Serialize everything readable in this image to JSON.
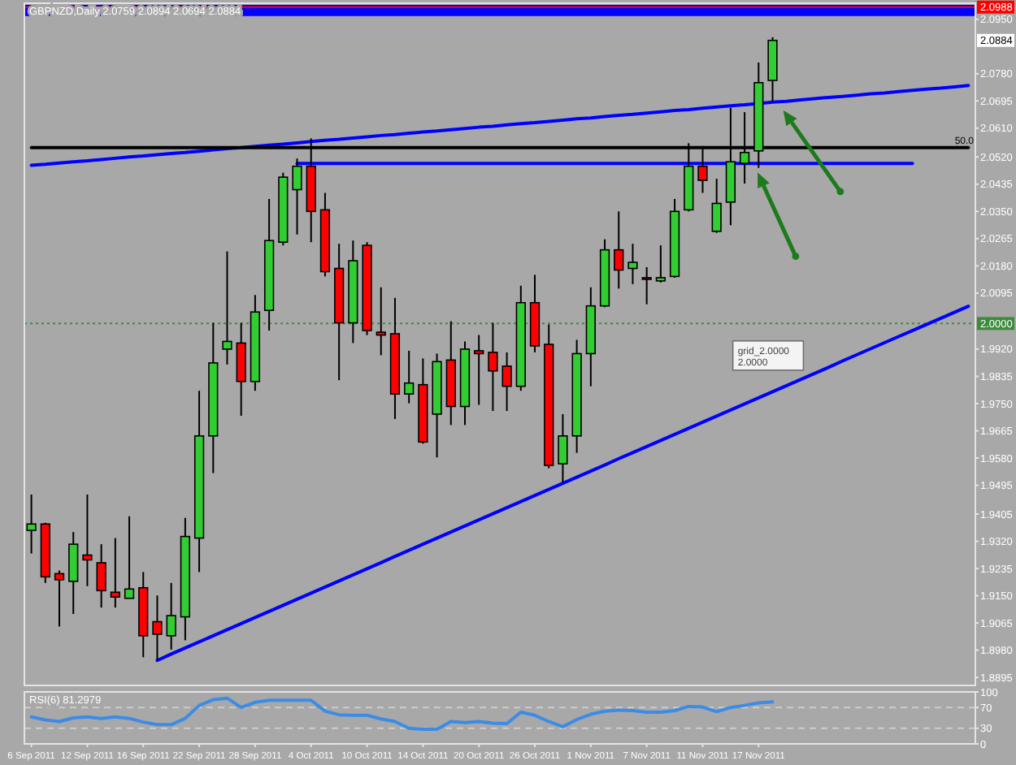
{
  "chart_data": [
    {
      "type": "candlestick",
      "title": "GBPNZD,Daily 2.0759 2.0894 2.0694 2.0884",
      "categories": [
        null,
        null,
        null,
        null,
        null,
        null,
        null,
        null,
        null,
        null,
        null,
        null,
        null,
        null,
        null,
        null,
        null,
        null,
        null,
        null,
        null,
        null,
        null,
        null,
        null,
        null,
        null,
        null,
        null,
        null,
        null,
        null,
        null,
        null,
        null,
        null,
        null,
        null,
        null,
        null,
        null,
        null,
        null,
        null,
        null,
        null,
        null,
        null,
        null,
        null,
        null,
        null,
        null,
        null,
        null,
        null,
        null,
        null,
        null,
        null,
        null,
        null,
        null,
        null,
        null,
        null,
        null,
        null
      ],
      "ohlc": [
        [
          1.9354,
          1.9466,
          1.9282,
          1.9374
        ],
        [
          1.9374,
          1.9378,
          1.919,
          1.9209
        ],
        [
          1.9219,
          1.9229,
          1.9054,
          1.92
        ],
        [
          1.9195,
          1.9349,
          1.9093,
          1.9311
        ],
        [
          1.9277,
          1.9466,
          1.918,
          1.9262
        ],
        [
          1.9253,
          1.9311,
          1.9113,
          1.9166
        ],
        [
          1.9161,
          1.933,
          1.9113,
          1.9146
        ],
        [
          1.9142,
          1.9398,
          1.9142,
          1.9171
        ],
        [
          1.9175,
          1.9224,
          1.8958,
          1.9025
        ],
        [
          1.9069,
          1.9151,
          1.8948,
          1.903
        ],
        [
          1.9025,
          1.919,
          1.8982,
          1.9088
        ],
        [
          1.9084,
          1.9393,
          1.9011,
          1.9335
        ],
        [
          1.933,
          1.979,
          1.9224,
          1.9649
        ],
        [
          1.9649,
          2.0002,
          1.9533,
          1.9877
        ],
        [
          1.992,
          2.0225,
          1.9872,
          1.9944
        ],
        [
          1.9939,
          2.0002,
          1.9712,
          1.9819
        ],
        [
          1.9819,
          2.0089,
          1.979,
          2.0036
        ],
        [
          2.0041,
          2.0389,
          1.9978,
          2.0259
        ],
        [
          2.0254,
          2.0471,
          2.0244,
          2.0457
        ],
        [
          2.0418,
          2.0515,
          2.0278,
          2.0491
        ],
        [
          2.0491,
          2.0578,
          2.0254,
          2.035
        ],
        [
          2.0355,
          2.0408,
          2.0147,
          2.0162
        ],
        [
          2.0172,
          2.0249,
          1.9823,
          2.0002
        ],
        [
          2.0002,
          2.0259,
          1.9939,
          2.0196
        ],
        [
          2.0244,
          2.0254,
          1.9964,
          1.9978
        ],
        [
          1.9973,
          2.0113,
          1.9901,
          1.9964
        ],
        [
          1.9968,
          2.008,
          1.9702,
          1.978
        ],
        [
          1.978,
          1.9915,
          1.9751,
          1.9814
        ],
        [
          1.9809,
          1.9891,
          1.9625,
          1.963
        ],
        [
          1.9717,
          1.9906,
          1.9582,
          1.9881
        ],
        [
          1.9886,
          2.0007,
          1.9683,
          1.9741
        ],
        [
          1.9741,
          1.9944,
          1.9683,
          1.992
        ],
        [
          1.9915,
          1.9964,
          1.9746,
          1.9906
        ],
        [
          1.991,
          2.0002,
          1.9727,
          1.9852
        ],
        [
          1.9867,
          1.991,
          1.9727,
          1.9804
        ],
        [
          1.9804,
          2.0118,
          1.979,
          2.0065
        ],
        [
          2.0065,
          2.0152,
          1.991,
          1.993
        ],
        [
          1.9935,
          1.9997,
          1.9548,
          1.9557
        ],
        [
          1.9562,
          1.9717,
          1.9504,
          1.9649
        ],
        [
          1.9649,
          1.9949,
          1.9596,
          1.9906
        ],
        [
          1.9906,
          2.0113,
          1.9804,
          2.0055
        ],
        [
          2.0055,
          2.0263,
          2.0051,
          2.023
        ],
        [
          2.023,
          2.035,
          2.0109,
          2.0167
        ],
        [
          2.0172,
          2.0249,
          2.0123,
          2.0191
        ],
        [
          2.0143,
          2.0176,
          2.006,
          2.0138
        ],
        [
          2.0133,
          2.0244,
          2.0128,
          2.0143
        ],
        [
          2.0147,
          2.0389,
          2.0143,
          2.035
        ],
        [
          2.0355,
          2.0563,
          2.035,
          2.0491
        ],
        [
          2.0491,
          2.0554,
          2.0408,
          2.0447
        ],
        [
          2.0288,
          2.0452,
          2.0283,
          2.0375
        ],
        [
          2.0379,
          2.0674,
          2.0307,
          2.0505
        ],
        [
          2.05,
          2.066,
          2.0437,
          2.0534
        ],
        [
          2.0539,
          2.0815,
          2.0486,
          2.0752
        ],
        [
          2.0759,
          2.0894,
          2.0694,
          2.0884
        ],
        null,
        null,
        null,
        null,
        null,
        null,
        null,
        null,
        null,
        null,
        null,
        null,
        null,
        null
      ],
      "colors": [
        "#32cd32",
        "#ff0000",
        "#ff0000",
        "#32cd32",
        "#ff0000",
        "#ff0000",
        "#ff0000",
        "#32cd32",
        "#ff0000",
        "#ff0000",
        "#32cd32",
        "#32cd32",
        "#32cd32",
        "#32cd32",
        "#32cd32",
        "#ff0000",
        "#32cd32",
        "#32cd32",
        "#32cd32",
        "#32cd32",
        "#ff0000",
        "#ff0000",
        "#ff0000",
        "#32cd32",
        "#ff0000",
        "#ff0000",
        "#ff0000",
        "#32cd32",
        "#ff0000",
        "#32cd32",
        "#ff0000",
        "#32cd32",
        "#ff0000",
        "#ff0000",
        "#ff0000",
        "#32cd32",
        "#ff0000",
        "#ff0000",
        "#32cd32",
        "#32cd32",
        "#32cd32",
        "#32cd32",
        "#ff0000",
        "#32cd32",
        "#ff0000",
        "#32cd32",
        "#32cd32",
        "#32cd32",
        "#ff0000",
        "#32cd32",
        "#32cd32",
        "#32cd32",
        "#32cd32",
        "#32cd32",
        null,
        null,
        null,
        null,
        null,
        null,
        null,
        null,
        null,
        null,
        null,
        null,
        null,
        null
      ],
      "series": [
        {
          "type": "line",
          "color": "#0000ff",
          "values": [
            2.0494,
            2.0497,
            2.0501,
            2.0505,
            2.0508,
            2.0512,
            2.0516,
            2.052,
            2.0523,
            2.0527,
            2.0531,
            2.0534,
            2.0538,
            2.0542,
            2.0546,
            2.0549,
            2.0553,
            2.0557,
            2.056,
            2.0564,
            2.0568,
            2.0572,
            2.0575,
            2.0579,
            2.0583,
            2.0587,
            2.059,
            2.0594,
            2.0598,
            2.0601,
            2.0605,
            2.0609,
            2.0613,
            2.0616,
            2.062,
            2.0624,
            2.0627,
            2.0631,
            2.0635,
            2.0639,
            2.0642,
            2.0646,
            2.065,
            2.0653,
            2.0657,
            2.0661,
            2.0665,
            2.0668,
            2.0672,
            2.0676,
            2.068,
            2.0683,
            2.0687,
            2.0691,
            2.0694,
            2.0698,
            2.0702,
            2.0706,
            2.0709,
            2.0713,
            2.0717,
            2.072,
            2.0724,
            2.0728,
            2.0732,
            2.0735,
            2.0739,
            2.0743
          ]
        },
        {
          "type": "line",
          "color": "#0000ff",
          "values": [
            null,
            null,
            null,
            null,
            null,
            null,
            null,
            null,
            null,
            1.8948,
            1.8968,
            1.8987,
            1.9006,
            1.9025,
            1.9044,
            1.9063,
            1.9082,
            1.9101,
            1.912,
            1.9139,
            1.9158,
            1.9177,
            1.9196,
            1.9215,
            1.9234,
            1.9253,
            1.9273,
            1.9292,
            1.9311,
            1.933,
            1.9349,
            1.9368,
            1.9387,
            1.9406,
            1.9425,
            1.9444,
            1.9463,
            1.9482,
            1.9501,
            1.952,
            1.9539,
            1.9558,
            1.9578,
            1.9597,
            1.9616,
            1.9635,
            1.9654,
            1.9673,
            1.9692,
            1.9711,
            1.973,
            1.9749,
            1.9768,
            1.9787,
            1.9806,
            1.9825,
            1.9844,
            1.9863,
            1.9883,
            1.9902,
            1.9921,
            1.994,
            1.9959,
            1.9978,
            1.9997,
            2.0016,
            2.0035,
            2.0054
          ]
        },
        {
          "type": "line",
          "color": "#0000ff",
          "values": [
            null,
            null,
            null,
            null,
            null,
            null,
            null,
            null,
            null,
            null,
            null,
            null,
            null,
            null,
            null,
            null,
            null,
            null,
            null,
            2.05,
            2.05,
            2.05,
            2.05,
            2.05,
            2.05,
            2.05,
            2.05,
            2.05,
            2.05,
            2.05,
            2.05,
            2.05,
            2.05,
            2.05,
            2.05,
            2.05,
            2.05,
            2.05,
            2.05,
            2.05,
            2.05,
            2.05,
            2.05,
            2.05,
            2.05,
            2.05,
            2.05,
            2.05,
            2.05,
            2.05,
            2.05,
            2.05,
            2.05,
            2.05,
            2.05,
            2.05,
            2.05,
            2.05,
            2.05,
            2.05,
            2.05,
            2.05,
            2.05,
            2.05,
            null,
            null,
            null,
            null
          ]
        },
        {
          "type": "line",
          "name": "50.0",
          "color": "#000000",
          "values": [
            2.0549,
            2.0549,
            2.0549,
            2.0549,
            2.0549,
            2.0549,
            2.0549,
            2.0549,
            2.0549,
            2.0549,
            2.0549,
            2.0549,
            2.0549,
            2.0549,
            2.0549,
            2.0549,
            2.0549,
            2.0549,
            2.0549,
            2.0549,
            2.0549,
            2.0549,
            2.0549,
            2.0549,
            2.0549,
            2.0549,
            2.0549,
            2.0549,
            2.0549,
            2.0549,
            2.0549,
            2.0549,
            2.0549,
            2.0549,
            2.0549,
            2.0549,
            2.0549,
            2.0549,
            2.0549,
            2.0549,
            2.0549,
            2.0549,
            2.0549,
            2.0549,
            2.0549,
            2.0549,
            2.0549,
            2.0549,
            2.0549,
            2.0549,
            2.0549,
            2.0549,
            2.0549,
            2.0549,
            2.0549,
            2.0549,
            2.0549,
            2.0549,
            2.0549,
            2.0549,
            2.0549,
            2.0549,
            2.0549,
            2.0549,
            2.0549,
            2.0549,
            2.0549,
            2.0549
          ]
        }
      ],
      "ylim": [
        1.887,
        2.1
      ],
      "yticks": [
        {
          "value": 2.095,
          "label": "2.0950"
        },
        {
          "value": 2.078,
          "label": "2.0780"
        },
        2.0695,
        {
          "value": 2.061,
          "label": "2.0610"
        },
        {
          "value": 2.052,
          "label": "2.0520"
        },
        2.0435,
        {
          "value": 2.035,
          "label": "2.0350"
        },
        2.0265,
        {
          "value": 2.018,
          "label": "2.0180"
        },
        2.0095,
        {
          "value": 1.992,
          "label": "1.9920"
        },
        1.9835,
        {
          "value": 1.975,
          "label": "1.9750"
        },
        1.9665,
        {
          "value": 1.958,
          "label": "1.9580"
        },
        1.9495,
        1.9405,
        {
          "value": 1.932,
          "label": "1.9320"
        },
        1.9235,
        {
          "value": 1.915,
          "label": "1.9150"
        },
        1.9065,
        {
          "value": 1.898,
          "label": "1.8980"
        },
        1.8895
      ],
      "ref_lines": [
        {
          "axis": "y",
          "value": 2.0988,
          "label": "2.0988",
          "color": "#ff0000"
        },
        {
          "axis": "y",
          "value": 2.0,
          "label": "2.0000",
          "color": "#3c8c3c",
          "line_style": "dotted"
        }
      ],
      "bands": [
        {
          "axis": "y",
          "from": 2.096,
          "to": 2.0995,
          "color": "#0000ff"
        }
      ],
      "annotations": [
        "grid_2.0000",
        "2.0000",
        {
          "text": "2.0884",
          "y": 2.0884
        }
      ]
    },
    {
      "type": "line",
      "title": "RSI(6) 81.2979",
      "categories": [
        "6 Sep 2011",
        null,
        null,
        null,
        "12 Sep 2011",
        null,
        null,
        null,
        "16 Sep 2011",
        null,
        null,
        null,
        "22 Sep 2011",
        null,
        null,
        null,
        "28 Sep 2011",
        null,
        null,
        null,
        "4 Oct 2011",
        null,
        null,
        null,
        "10 Oct 2011",
        null,
        null,
        null,
        "14 Oct 2011",
        null,
        null,
        null,
        "20 Oct 2011",
        null,
        null,
        null,
        "26 Oct 2011",
        null,
        null,
        null,
        "1 Nov 2011",
        null,
        null,
        null,
        "7 Nov 2011",
        null,
        null,
        null,
        "11 Nov 2011",
        null,
        null,
        null,
        "17 Nov 2011",
        null,
        null,
        null,
        null,
        null,
        null,
        null,
        null,
        null,
        null,
        null,
        null,
        null,
        null,
        null
      ],
      "series": [
        {
          "color": "#3c8ce6",
          "values": [
            52,
            46,
            43,
            50,
            52,
            49,
            52,
            49,
            42,
            37,
            37,
            49,
            74,
            85,
            88,
            70,
            80,
            84,
            84,
            84,
            84,
            63,
            56,
            55,
            55,
            48,
            43,
            30,
            28,
            28,
            43,
            41,
            43,
            40,
            39,
            61,
            55,
            43,
            33,
            47,
            57,
            63,
            65,
            64,
            61,
            61,
            64,
            72,
            71,
            62,
            70,
            74,
            79,
            81,
            null,
            null,
            null,
            null,
            null,
            null,
            null,
            null,
            null,
            null,
            null,
            null,
            null,
            null
          ]
        }
      ],
      "ylim": [
        0,
        100
      ],
      "yticks": [
        100,
        70,
        30,
        0
      ],
      "ref_lines": [
        {
          "axis": "y",
          "value": 70,
          "color": "#cccccc",
          "line_style": "dashed"
        },
        {
          "axis": "y",
          "value": 30,
          "color": "#cccccc",
          "line_style": "dashed"
        }
      ]
    }
  ]
}
